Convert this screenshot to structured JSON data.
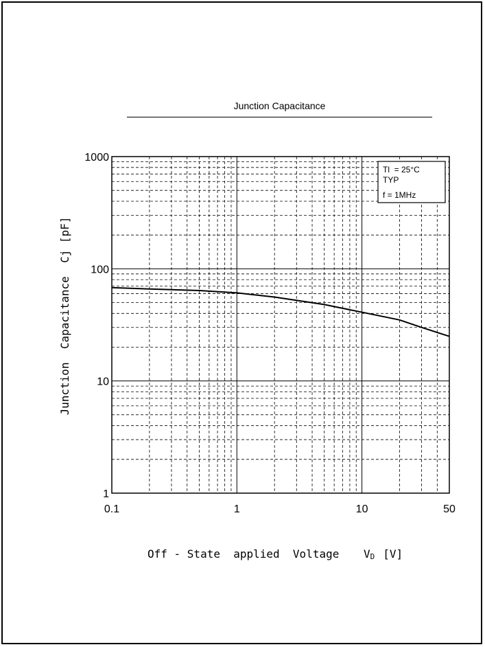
{
  "chart_data": {
    "type": "line",
    "title": "Junction Capacitance",
    "xlabel": "Off - State  applied  Voltage  V_D  [V]",
    "xlabel_main": "Off - State  applied  Voltage",
    "xlabel_symbol": "V",
    "xlabel_subscript": "D",
    "xlabel_unit": "[V]",
    "ylabel": "Junction  Capacitance  Cj [pF]",
    "x_scale": "log",
    "y_scale": "log",
    "xlim": [
      0.1,
      50
    ],
    "ylim": [
      1,
      1000
    ],
    "x_tick_labels": [
      "0.1",
      "1",
      "10",
      "50"
    ],
    "y_tick_labels": [
      "1",
      "10",
      "100",
      "1000"
    ],
    "grid": true,
    "legend_placement": "top-right",
    "legend": [
      "Tl  = 25°C",
      "TYP",
      "f = 1MHz"
    ],
    "series": [
      {
        "x": [
          0.1,
          0.2,
          0.5,
          1,
          2,
          5,
          10,
          20,
          30,
          50
        ],
        "y": [
          68,
          66,
          64,
          61,
          56,
          48,
          41,
          35,
          30,
          25
        ]
      }
    ]
  }
}
